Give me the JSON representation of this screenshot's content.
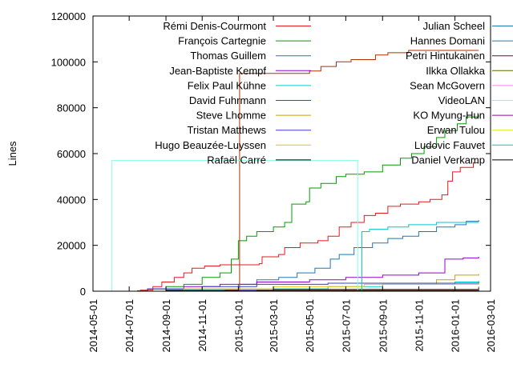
{
  "chart_data": {
    "type": "line",
    "title": "",
    "xlabel": "",
    "ylabel": "Lines",
    "ylim": [
      0,
      120000
    ],
    "xlim": [
      "2014-05-01",
      "2016-03-01"
    ],
    "yticks": [
      "0",
      "20000",
      "40000",
      "60000",
      "80000",
      "100000",
      "120000"
    ],
    "xticks": [
      "2014-05-01",
      "2014-07-01",
      "2014-09-01",
      "2014-11-01",
      "2015-01-01",
      "2015-03-01",
      "2015-05-01",
      "2015-07-01",
      "2015-09-01",
      "2015-11-01",
      "2016-01-01",
      "2016-03-01"
    ],
    "grid": false,
    "legend_position": "top",
    "series": [
      {
        "name": "Rémi Denis-Courmont",
        "color": "#e41a1c",
        "points": [
          [
            "2014-06-01",
            0
          ],
          [
            "2014-07-20",
            500
          ],
          [
            "2014-08-10",
            2000
          ],
          [
            "2014-08-25",
            4000
          ],
          [
            "2014-09-15",
            6000
          ],
          [
            "2014-10-01",
            8000
          ],
          [
            "2014-10-15",
            10000
          ],
          [
            "2014-11-05",
            11000
          ],
          [
            "2014-12-01",
            11500
          ],
          [
            "2015-01-20",
            11500
          ],
          [
            "2015-02-05",
            12000
          ],
          [
            "2015-02-10",
            15000
          ],
          [
            "2015-03-10",
            16000
          ],
          [
            "2015-03-20",
            19000
          ],
          [
            "2015-04-15",
            21000
          ],
          [
            "2015-05-15",
            22000
          ],
          [
            "2015-06-01",
            24000
          ],
          [
            "2015-06-20",
            28000
          ],
          [
            "2015-07-10",
            30000
          ],
          [
            "2015-08-01",
            33000
          ],
          [
            "2015-08-20",
            34000
          ],
          [
            "2015-09-10",
            37000
          ],
          [
            "2015-10-01",
            38000
          ],
          [
            "2015-11-01",
            39000
          ],
          [
            "2015-11-20",
            40000
          ],
          [
            "2015-12-10",
            42000
          ],
          [
            "2015-12-20",
            48000
          ],
          [
            "2015-12-28",
            52000
          ],
          [
            "2016-01-10",
            54000
          ],
          [
            "2016-02-01",
            56000
          ],
          [
            "2016-02-10",
            56000
          ]
        ]
      },
      {
        "name": "François Cartegnie",
        "color": "#009e00",
        "points": [
          [
            "2014-06-01",
            0
          ],
          [
            "2014-07-15",
            200
          ],
          [
            "2014-08-01",
            1000
          ],
          [
            "2014-09-01",
            2000
          ],
          [
            "2014-10-01",
            3000
          ],
          [
            "2014-11-01",
            6000
          ],
          [
            "2014-12-01",
            8000
          ],
          [
            "2014-12-20",
            14000
          ],
          [
            "2015-01-01",
            22000
          ],
          [
            "2015-01-15",
            24000
          ],
          [
            "2015-02-01",
            26000
          ],
          [
            "2015-03-01",
            28000
          ],
          [
            "2015-03-20",
            30000
          ],
          [
            "2015-04-01",
            38000
          ],
          [
            "2015-04-25",
            39000
          ],
          [
            "2015-05-01",
            45000
          ],
          [
            "2015-05-20",
            47000
          ],
          [
            "2015-06-15",
            50000
          ],
          [
            "2015-07-01",
            51000
          ],
          [
            "2015-08-01",
            52000
          ],
          [
            "2015-09-01",
            55000
          ],
          [
            "2015-10-01",
            58000
          ],
          [
            "2015-10-20",
            60000
          ],
          [
            "2015-11-10",
            63000
          ],
          [
            "2015-12-01",
            67000
          ],
          [
            "2015-12-15",
            70000
          ],
          [
            "2016-01-05",
            73000
          ],
          [
            "2016-01-20",
            76000
          ],
          [
            "2016-02-10",
            77000
          ]
        ]
      },
      {
        "name": "Thomas Guillem",
        "color": "#1f78b4",
        "points": [
          [
            "2014-06-01",
            0
          ],
          [
            "2014-09-01",
            500
          ],
          [
            "2014-11-01",
            1000
          ],
          [
            "2015-01-01",
            3000
          ],
          [
            "2015-02-01",
            5000
          ],
          [
            "2015-03-10",
            6000
          ],
          [
            "2015-04-10",
            8000
          ],
          [
            "2015-05-10",
            10000
          ],
          [
            "2015-06-05",
            14000
          ],
          [
            "2015-06-20",
            16000
          ],
          [
            "2015-07-15",
            19000
          ],
          [
            "2015-08-15",
            21000
          ],
          [
            "2015-09-10",
            23000
          ],
          [
            "2015-10-05",
            24000
          ],
          [
            "2015-11-01",
            26000
          ],
          [
            "2015-12-01",
            28000
          ],
          [
            "2016-01-01",
            29000
          ],
          [
            "2016-01-20",
            30500
          ],
          [
            "2016-02-10",
            31000
          ]
        ]
      },
      {
        "name": "Jean-Baptiste Kempf",
        "color": "#9400d3",
        "points": [
          [
            "2014-06-01",
            0
          ],
          [
            "2014-08-01",
            1000
          ],
          [
            "2014-10-01",
            2000
          ],
          [
            "2014-12-01",
            3000
          ],
          [
            "2015-02-01",
            4000
          ],
          [
            "2015-05-01",
            5000
          ],
          [
            "2015-07-01",
            6000
          ],
          [
            "2015-09-01",
            7000
          ],
          [
            "2015-11-01",
            8000
          ],
          [
            "2015-12-10",
            8000
          ],
          [
            "2015-12-15",
            14000
          ],
          [
            "2016-01-15",
            14500
          ],
          [
            "2016-02-10",
            15000
          ]
        ]
      },
      {
        "name": "Felix Paul Kühne",
        "color": "#00cdcd",
        "points": [
          [
            "2014-06-01",
            0
          ],
          [
            "2014-10-01",
            500
          ],
          [
            "2015-01-01",
            1000
          ],
          [
            "2015-06-01",
            2000
          ],
          [
            "2015-09-01",
            3000
          ],
          [
            "2016-01-01",
            4000
          ],
          [
            "2016-02-10",
            4500
          ]
        ]
      },
      {
        "name": "David Fuhrmann",
        "color": "#b03000",
        "points": [
          [
            "2014-06-01",
            0
          ],
          [
            "2014-10-01",
            200
          ],
          [
            "2014-12-10",
            500
          ],
          [
            "2015-01-01",
            500
          ],
          [
            "2015-01-03",
            95000
          ],
          [
            "2015-04-01",
            95000
          ],
          [
            "2015-05-01",
            96000
          ],
          [
            "2015-05-20",
            98000
          ],
          [
            "2015-06-15",
            100000
          ],
          [
            "2015-07-10",
            101000
          ],
          [
            "2015-08-20",
            103000
          ],
          [
            "2015-09-10",
            104000
          ],
          [
            "2015-10-15",
            105000
          ],
          [
            "2016-02-10",
            105000
          ]
        ]
      },
      {
        "name": "Steve Lhomme",
        "color": "#c8a000",
        "points": [
          [
            "2014-06-01",
            0
          ],
          [
            "2015-03-01",
            200
          ],
          [
            "2015-09-01",
            3000
          ],
          [
            "2015-12-01",
            5000
          ],
          [
            "2016-01-01",
            7000
          ],
          [
            "2016-02-10",
            7500
          ]
        ]
      },
      {
        "name": "Tristan Matthews",
        "color": "#3b3bd6",
        "points": [
          [
            "2014-06-01",
            0
          ],
          [
            "2014-08-01",
            1000
          ],
          [
            "2014-11-01",
            2000
          ],
          [
            "2015-02-01",
            3000
          ],
          [
            "2015-06-01",
            3500
          ],
          [
            "2016-02-10",
            4000
          ]
        ]
      },
      {
        "name": "Hugo Beauzée-Luyssen",
        "color": "#f0c000",
        "points": [
          [
            "2014-06-01",
            0
          ],
          [
            "2014-10-01",
            1000
          ],
          [
            "2015-03-01",
            2000
          ],
          [
            "2015-08-01",
            3000
          ],
          [
            "2016-02-10",
            3500
          ]
        ]
      },
      {
        "name": "Rafaël Carré",
        "color": "#000000",
        "points": [
          [
            "2014-06-01",
            0
          ],
          [
            "2014-09-01",
            300
          ],
          [
            "2015-03-01",
            700
          ],
          [
            "2016-02-10",
            1000
          ]
        ]
      },
      {
        "name": "Julian Scheel",
        "color": "#1f78b4",
        "points": [
          [
            "2014-06-01",
            0
          ],
          [
            "2015-01-01",
            500
          ],
          [
            "2016-02-10",
            2000
          ]
        ]
      },
      {
        "name": "Hannes Domani",
        "color": "#1f78b4",
        "points": [
          [
            "2014-06-01",
            0
          ],
          [
            "2015-06-01",
            500
          ],
          [
            "2016-02-10",
            1000
          ]
        ]
      },
      {
        "name": "Petri Hintukainen",
        "color": "#800040",
        "points": [
          [
            "2014-06-01",
            0
          ],
          [
            "2015-04-01",
            800
          ],
          [
            "2016-02-10",
            1500
          ]
        ]
      },
      {
        "name": "Ilkka Ollakka",
        "color": "#507000",
        "points": [
          [
            "2014-06-01",
            0
          ],
          [
            "2015-02-01",
            500
          ],
          [
            "2016-02-10",
            1200
          ]
        ]
      },
      {
        "name": "Sean McGovern",
        "color": "#ff80ff",
        "points": [
          [
            "2014-06-01",
            0
          ],
          [
            "2015-05-01",
            300
          ],
          [
            "2016-02-10",
            800
          ]
        ]
      },
      {
        "name": "VideoLAN",
        "color": "#80ffe0",
        "points": [
          [
            "2014-06-01",
            0
          ],
          [
            "2014-06-02",
            57000
          ],
          [
            "2015-07-20",
            57000
          ],
          [
            "2015-07-21",
            0
          ],
          [
            "2016-02-10",
            0
          ]
        ]
      },
      {
        "name": "KO Myung-Hun",
        "color": "#a000a0",
        "points": [
          [
            "2014-06-01",
            0
          ],
          [
            "2015-01-01",
            300
          ],
          [
            "2016-02-10",
            600
          ]
        ]
      },
      {
        "name": "Erwan Tulou",
        "color": "#e8e800",
        "points": [
          [
            "2014-06-01",
            0
          ],
          [
            "2015-03-01",
            200
          ],
          [
            "2016-02-10",
            500
          ]
        ]
      },
      {
        "name": "Ludovic Fauvet",
        "color": "#00c8c8",
        "points": [
          [
            "2014-06-01",
            0
          ],
          [
            "2015-07-25",
            0
          ],
          [
            "2015-07-28",
            26000
          ],
          [
            "2015-08-10",
            27000
          ],
          [
            "2015-09-10",
            28000
          ],
          [
            "2015-10-15",
            29000
          ],
          [
            "2015-12-01",
            30000
          ],
          [
            "2016-02-10",
            30000
          ]
        ]
      },
      {
        "name": "Daniel Verkamp",
        "color": "#000000",
        "points": [
          [
            "2014-06-01",
            0
          ],
          [
            "2015-02-01",
            200
          ],
          [
            "2016-02-10",
            400
          ]
        ]
      }
    ]
  }
}
